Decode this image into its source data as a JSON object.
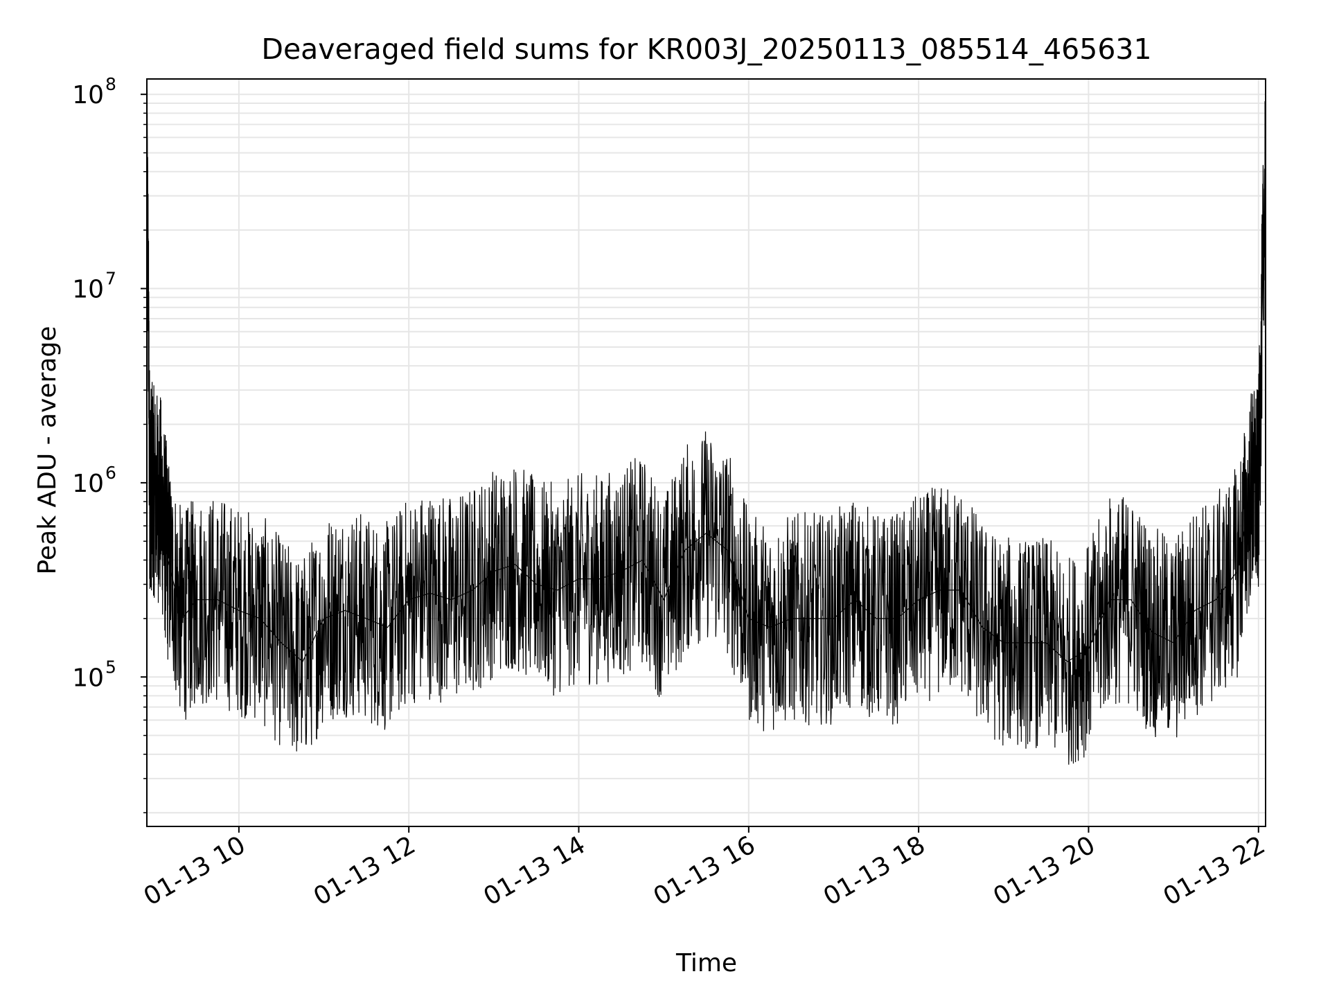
{
  "chart_data": {
    "type": "line",
    "title": "Deaveraged field sums for KR003J_20250113_085514_465631",
    "xlabel": "Time",
    "ylabel": "Peak ADU - average",
    "x_range": [
      "01-13 08:55",
      "01-13 22:05"
    ],
    "x_ticks": [
      "01-13 10",
      "01-13 12",
      "01-13 14",
      "01-13 16",
      "01-13 18",
      "01-13 20",
      "01-13 22"
    ],
    "y_scale": "log",
    "ylim": [
      17000,
      120000000
    ],
    "y_ticks": [
      {
        "value": 100000,
        "base": "10",
        "exp": "5"
      },
      {
        "value": 1000000,
        "base": "10",
        "exp": "6"
      },
      {
        "value": 10000000,
        "base": "10",
        "exp": "7"
      },
      {
        "value": 100000000,
        "base": "10",
        "exp": "8"
      }
    ],
    "grid": true,
    "line_color": "#000000",
    "grid_color": "#e6e6e6",
    "series": [
      {
        "x": [
          "01-13 08:55",
          "01-13 08:57",
          "01-13 09:00",
          "01-13 09:05",
          "01-13 09:10",
          "01-13 09:20",
          "01-13 09:30",
          "01-13 09:45",
          "01-13 10:00",
          "01-13 10:15",
          "01-13 10:30",
          "01-13 10:45",
          "01-13 11:00",
          "01-13 11:15",
          "01-13 11:30",
          "01-13 11:45",
          "01-13 12:00",
          "01-13 12:15",
          "01-13 12:30",
          "01-13 12:45",
          "01-13 13:00",
          "01-13 13:15",
          "01-13 13:30",
          "01-13 13:45",
          "01-13 14:00",
          "01-13 14:15",
          "01-13 14:30",
          "01-13 14:45",
          "01-13 15:00",
          "01-13 15:15",
          "01-13 15:30",
          "01-13 15:45",
          "01-13 16:00",
          "01-13 16:15",
          "01-13 16:30",
          "01-13 16:45",
          "01-13 17:00",
          "01-13 17:15",
          "01-13 17:30",
          "01-13 17:45",
          "01-13 18:00",
          "01-13 18:15",
          "01-13 18:30",
          "01-13 18:45",
          "01-13 19:00",
          "01-13 19:15",
          "01-13 19:30",
          "01-13 19:45",
          "01-13 20:00",
          "01-13 20:15",
          "01-13 20:30",
          "01-13 20:45",
          "01-13 21:00",
          "01-13 21:15",
          "01-13 21:30",
          "01-13 21:45",
          "01-13 21:55",
          "01-13 22:00",
          "01-13 22:05"
        ],
        "y": [
          65000000,
          1000000,
          900000,
          800000,
          400000,
          200000,
          250000,
          250000,
          220000,
          200000,
          150000,
          120000,
          200000,
          220000,
          200000,
          180000,
          250000,
          270000,
          250000,
          280000,
          350000,
          380000,
          300000,
          280000,
          320000,
          320000,
          350000,
          400000,
          250000,
          450000,
          550000,
          450000,
          200000,
          180000,
          200000,
          200000,
          200000,
          250000,
          200000,
          200000,
          250000,
          280000,
          280000,
          180000,
          150000,
          150000,
          150000,
          120000,
          140000,
          250000,
          250000,
          170000,
          150000,
          220000,
          250000,
          350000,
          900000,
          900000,
          55000000
        ]
      }
    ]
  }
}
